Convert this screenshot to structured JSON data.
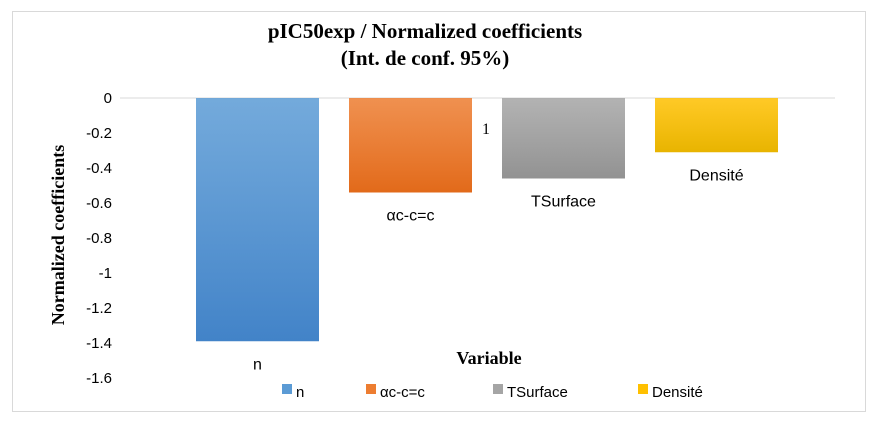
{
  "chart_data": {
    "type": "bar",
    "title": "pIC50exp / Normalized coefficients",
    "subtitle": "(Int. de conf. 95%)",
    "xlabel": "Variable",
    "ylabel": "Normalized coefficients",
    "ylim": [
      -1.6,
      0
    ],
    "yticks": [
      0,
      -0.2,
      -0.4,
      -0.6,
      -0.8,
      -1,
      -1.2,
      -1.4,
      -1.6
    ],
    "ytick_labels": [
      "0",
      "-0.2",
      "-0.4",
      "-0.6",
      "-0.8",
      "-1",
      "-1.2",
      "-1.4",
      "-1.6"
    ],
    "categories": [
      "n",
      "αc-c=c",
      "TSurface",
      "Densité"
    ],
    "values": [
      -1.39,
      -0.54,
      -0.46,
      -0.31
    ],
    "colors": [
      "#5b9bd5",
      "#ed7d31",
      "#a5a5a5",
      "#ffc000"
    ],
    "colors_dark": [
      "#4283c8",
      "#e26a1a",
      "#929292",
      "#e8b400"
    ],
    "annotation": "1",
    "legend": [
      "n",
      "αc-c=c",
      "TSurface",
      "Densité"
    ],
    "legend_position": "bottom",
    "grid": false
  }
}
